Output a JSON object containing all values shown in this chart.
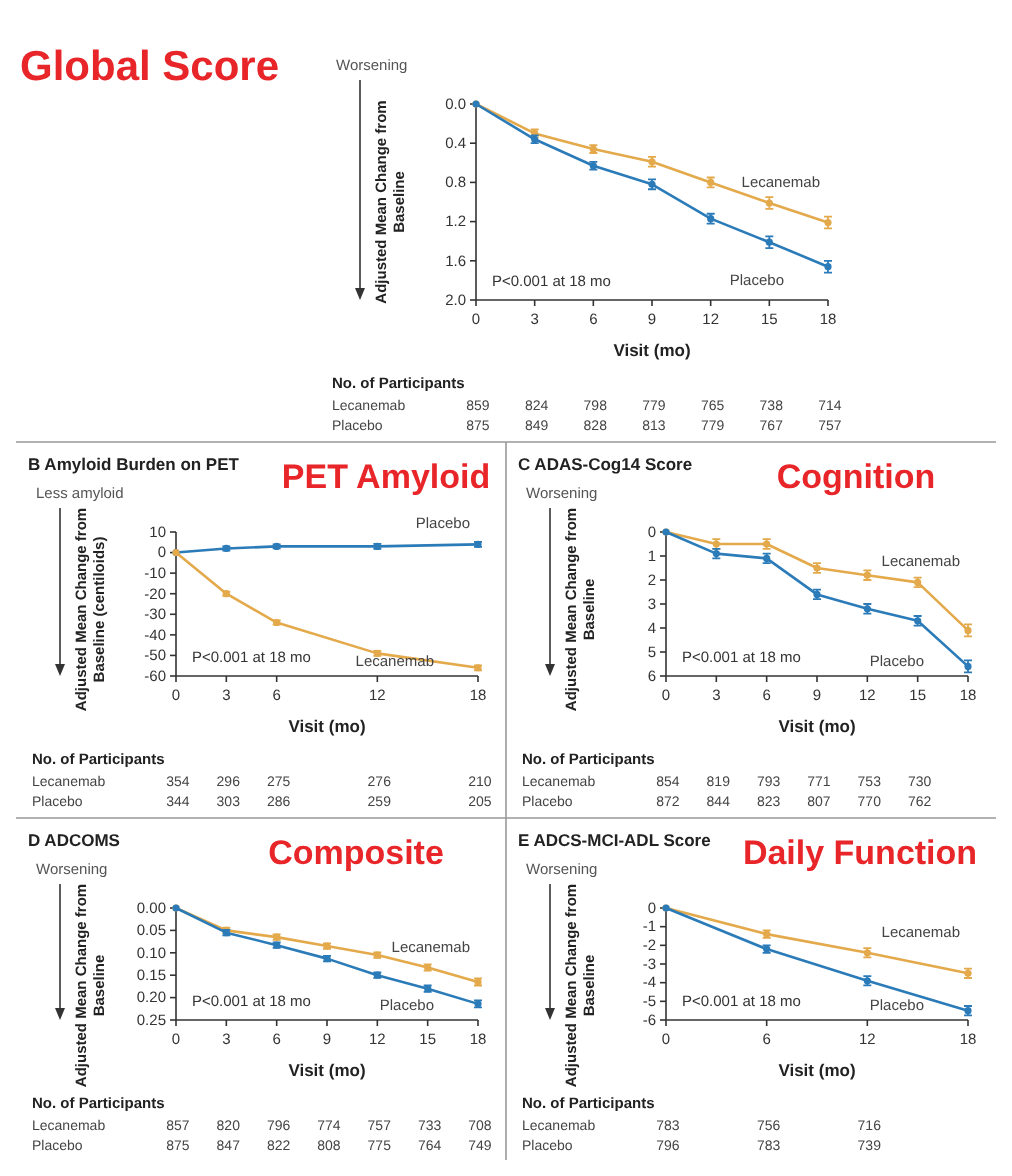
{
  "chart_data": [
    {
      "type": "line",
      "title": "Global Score",
      "xlabel": "Visit (mo)",
      "ylabel": "Adjusted Mean Change from Baseline",
      "x": [
        0,
        3,
        6,
        9,
        12,
        15,
        18
      ],
      "xlim": [
        0,
        18
      ],
      "xticks": [
        0,
        3,
        6,
        9,
        12,
        15,
        18
      ],
      "ylim": [
        2.0,
        0.0
      ],
      "yticks": [
        {
          "value": 0,
          "label": "0.0"
        },
        0.4,
        0.8,
        1.2,
        1.6,
        {
          "value": 2,
          "label": "2.0"
        }
      ],
      "legend": false,
      "marker": "circle",
      "grid": false,
      "series": [
        {
          "name": "Lecanemab",
          "color": "#e3a94b",
          "values": [
            0,
            0.3,
            0.46,
            0.59,
            0.8,
            1.01,
            1.21
          ],
          "errors": [
            null,
            0.04,
            0.04,
            0.05,
            0.05,
            0.06,
            0.06
          ]
        },
        {
          "name": "Placebo",
          "color": "#2b7bb9",
          "values": [
            0,
            0.36,
            0.63,
            0.82,
            1.17,
            1.41,
            1.66
          ],
          "errors": [
            null,
            0.04,
            0.04,
            0.05,
            0.05,
            0.06,
            0.06
          ]
        }
      ],
      "annotations": [
        "Worsening",
        "P<0.001 at 18 mo",
        "No. of Participants",
        "Lecanemab 859 824 798 779 765 738 714",
        "Placebo 875 849 828 813 779 767 757"
      ]
    },
    {
      "type": "line",
      "title": "PET Amyloid",
      "subtitle": "B Amyloid Burden on PET",
      "xlabel": "Visit (mo)",
      "ylabel": "Adjusted Mean Change from Baseline (centiloids)",
      "x": [
        0,
        3,
        6,
        12,
        18
      ],
      "xlim": [
        0,
        18
      ],
      "xticks": [
        0,
        3,
        6,
        12,
        18
      ],
      "ylim": [
        -60,
        10
      ],
      "yticks": [
        -60,
        -50,
        -40,
        -30,
        -20,
        -10,
        0,
        10
      ],
      "legend": false,
      "marker": "circle",
      "grid": false,
      "series": [
        {
          "name": "Placebo",
          "color": "#2b7bb9",
          "values": [
            0,
            2,
            3,
            3,
            4
          ],
          "errors": [
            null,
            1,
            1,
            1.2,
            1.2
          ]
        },
        {
          "name": "Lecanemab",
          "color": "#e3a94b",
          "values": [
            0,
            -20,
            -34,
            -49,
            -56
          ],
          "errors": [
            null,
            1,
            1,
            1.2,
            1.2
          ]
        }
      ],
      "annotations": [
        "Less amyloid",
        "P<0.001 at 18 mo",
        "No. of Participants",
        "Lecanemab 354 296 275 276 210",
        "Placebo 344 303 286 259 205"
      ]
    },
    {
      "type": "line",
      "title": "Cognition",
      "subtitle": "C ADAS-Cog14 Score",
      "xlabel": "Visit (mo)",
      "ylabel": "Adjusted Mean Change from Baseline",
      "x": [
        0,
        3,
        6,
        9,
        12,
        15,
        18
      ],
      "xlim": [
        0,
        18
      ],
      "xticks": [
        0,
        3,
        6,
        9,
        12,
        15,
        18
      ],
      "ylim": [
        6,
        0
      ],
      "yticks": [
        0,
        1,
        2,
        3,
        4,
        5,
        6
      ],
      "legend": false,
      "marker": "circle",
      "grid": false,
      "series": [
        {
          "name": "Lecanemab",
          "color": "#e3a94b",
          "values": [
            0,
            0.5,
            0.5,
            1.5,
            1.8,
            2.1,
            4.1
          ],
          "errors": [
            null,
            0.2,
            0.2,
            0.2,
            0.2,
            0.2,
            0.25
          ]
        },
        {
          "name": "Placebo",
          "color": "#2b7bb9",
          "values": [
            0,
            0.9,
            1.1,
            2.6,
            3.2,
            3.7,
            5.6
          ],
          "errors": [
            null,
            0.2,
            0.2,
            0.2,
            0.2,
            0.2,
            0.25
          ]
        }
      ],
      "annotations": [
        "Worsening",
        "P<0.001 at 18 mo",
        "No. of Participants",
        "Lecanemab 854 819 793 771 753 730",
        "Placebo 872 844 823 807 770 762"
      ]
    },
    {
      "type": "line",
      "title": "Composite",
      "subtitle": "D ADCOMS",
      "xlabel": "Visit (mo)",
      "ylabel": "Adjusted Mean Change from Baseline",
      "x": [
        0,
        3,
        6,
        9,
        12,
        15,
        18
      ],
      "xlim": [
        0,
        18
      ],
      "xticks": [
        0,
        3,
        6,
        9,
        12,
        15,
        18
      ],
      "ylim": [
        0.25,
        0
      ],
      "yticks": [
        {
          "value": 0,
          "label": "0.00"
        },
        0.05,
        {
          "value": 0.1,
          "label": "0.10"
        },
        0.15,
        {
          "value": 0.2,
          "label": "0.20"
        },
        0.25
      ],
      "legend": false,
      "marker": "circle",
      "grid": false,
      "series": [
        {
          "name": "Lecanemab",
          "color": "#e3a94b",
          "values": [
            0,
            0.05,
            0.065,
            0.085,
            0.105,
            0.133,
            0.165
          ],
          "errors": [
            null,
            0.006,
            0.006,
            0.006,
            0.006,
            0.007,
            0.008
          ]
        },
        {
          "name": "Placebo",
          "color": "#2b7bb9",
          "values": [
            0,
            0.055,
            0.083,
            0.113,
            0.15,
            0.18,
            0.214
          ],
          "errors": [
            null,
            0.006,
            0.006,
            0.006,
            0.006,
            0.007,
            0.008
          ]
        }
      ],
      "annotations": [
        "Worsening",
        "P<0.001 at 18 mo",
        "No. of Participants",
        "Lecanemab 857 820 796 774 757 733 708",
        "Placebo 875 847 822 808 775 764 749"
      ]
    },
    {
      "type": "line",
      "title": "Daily Function",
      "subtitle": "E ADCS-MCI-ADL Score",
      "xlabel": "Visit (mo)",
      "ylabel": "Adjusted Mean Change from Baseline",
      "x": [
        0,
        6,
        12,
        18
      ],
      "xlim": [
        0,
        18
      ],
      "xticks": [
        0,
        6,
        12,
        18
      ],
      "ylim": [
        -6,
        0
      ],
      "yticks": [
        -6,
        -5,
        -4,
        -3,
        -2,
        -1,
        0
      ],
      "legend": false,
      "marker": "circle",
      "grid": false,
      "series": [
        {
          "name": "Lecanemab",
          "color": "#e3a94b",
          "values": [
            0,
            -1.4,
            -2.4,
            -3.5
          ],
          "errors": [
            null,
            0.2,
            0.25,
            0.25
          ]
        },
        {
          "name": "Placebo",
          "color": "#2b7bb9",
          "values": [
            0,
            -2.2,
            -3.9,
            -5.5
          ],
          "errors": [
            null,
            0.2,
            0.25,
            0.25
          ]
        }
      ],
      "annotations": [
        "Worsening",
        "P<0.001 at 18 mo",
        "No. of Participants",
        "Lecanemab 783 756 716",
        "Placebo 796 783 739"
      ]
    }
  ]
}
